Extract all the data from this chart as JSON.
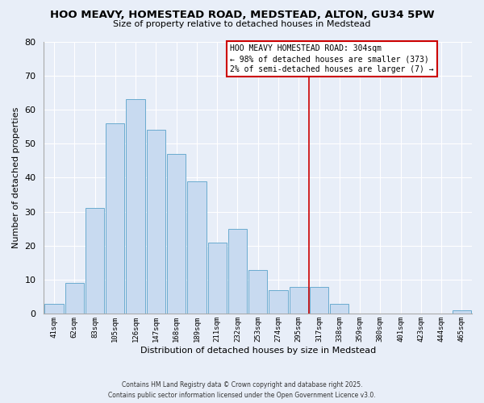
{
  "title": "HOO MEAVY, HOMESTEAD ROAD, MEDSTEAD, ALTON, GU34 5PW",
  "subtitle": "Size of property relative to detached houses in Medstead",
  "xlabel": "Distribution of detached houses by size in Medstead",
  "ylabel": "Number of detached properties",
  "bar_labels": [
    "41sqm",
    "62sqm",
    "83sqm",
    "105sqm",
    "126sqm",
    "147sqm",
    "168sqm",
    "189sqm",
    "211sqm",
    "232sqm",
    "253sqm",
    "274sqm",
    "295sqm",
    "317sqm",
    "338sqm",
    "359sqm",
    "380sqm",
    "401sqm",
    "423sqm",
    "444sqm",
    "465sqm"
  ],
  "bar_values": [
    3,
    9,
    31,
    56,
    63,
    54,
    47,
    39,
    21,
    25,
    13,
    7,
    8,
    8,
    3,
    0,
    0,
    0,
    0,
    0,
    1
  ],
  "bar_color": "#c8daf0",
  "bar_edge_color": "#6aabcf",
  "background_color": "#e8eef8",
  "grid_color": "#ffffff",
  "ylim": [
    0,
    80
  ],
  "yticks": [
    0,
    10,
    20,
    30,
    40,
    50,
    60,
    70,
    80
  ],
  "vline_color": "#cc0000",
  "vline_x_index": 12.5,
  "annotation_text": "HOO MEAVY HOMESTEAD ROAD: 304sqm\n← 98% of detached houses are smaller (373)\n2% of semi-detached houses are larger (7) →",
  "annotation_box_color": "white",
  "annotation_box_edge_color": "#cc0000",
  "footer_line1": "Contains HM Land Registry data © Crown copyright and database right 2025.",
  "footer_line2": "Contains public sector information licensed under the Open Government Licence v3.0."
}
